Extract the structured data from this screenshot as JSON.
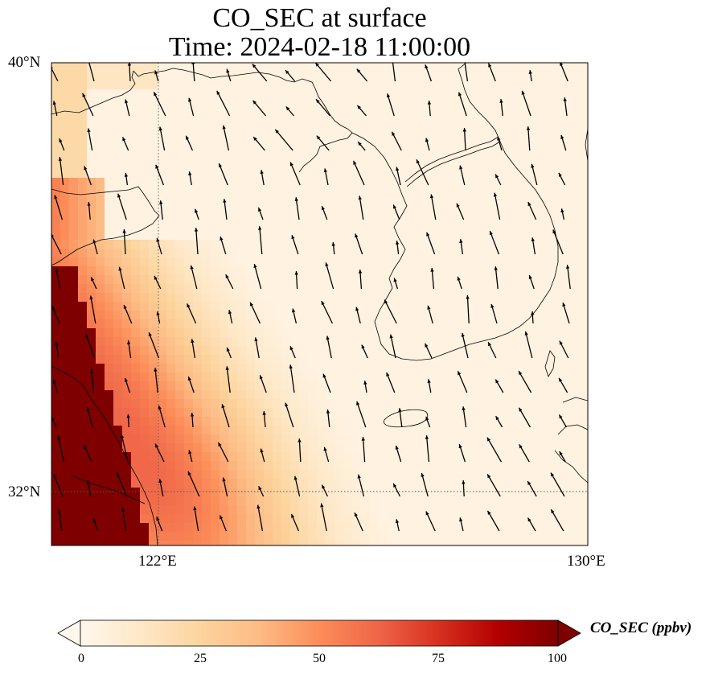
{
  "title": {
    "line1": "CO_SEC at surface",
    "line2": "Time: 2024-02-18 11:00:00"
  },
  "axes": {
    "lat_ticks": [
      "40°N",
      "32°N"
    ],
    "lon_ticks": [
      "122°E",
      "130°E"
    ],
    "extent": {
      "lon": [
        120,
        130
      ],
      "lat": [
        31,
        40
      ]
    },
    "gridlines": "dotted at 122°E and 32°N"
  },
  "colorbar": {
    "label": "CO_SEC (ppbv)",
    "ticks": [
      "0",
      "25",
      "50",
      "75",
      "100"
    ],
    "range": [
      0,
      100
    ],
    "extend": "both",
    "colormap": [
      "#fff7ec",
      "#fee8c8",
      "#fdd49e",
      "#fdbb84",
      "#fc8d59",
      "#ef6548",
      "#d7301f",
      "#b30000",
      "#7f0000"
    ]
  },
  "chart_data": {
    "type": "heatmap",
    "title": "CO_SEC at surface / Time: 2024-02-18 11:00:00",
    "variable": "CO_SEC (ppbv)",
    "field_description": "High concentrations (>100 ppbv) along Chinese coast (west edge, 31-35°N); plume 40-65 ppbv extending southeast across Yellow Sea toward 126-127°E; low values (<10 ppbv) over Korean Peninsula and northern Yellow Sea",
    "wind_vectors": "predominantly north-northwest flow (southerly/south-easterly winds), arrows pointing up-left",
    "ylim": [
      31,
      40
    ],
    "xlim": [
      120,
      130
    ]
  }
}
